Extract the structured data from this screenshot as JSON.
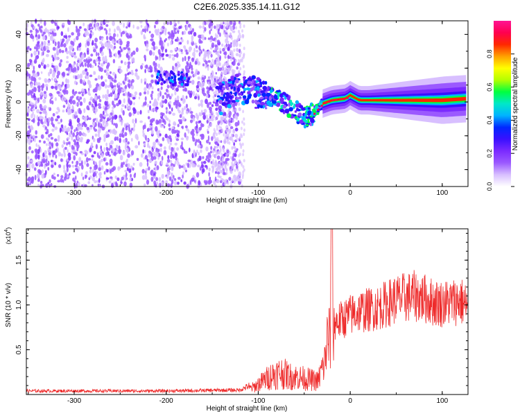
{
  "title": "C2E6.2025.335.14.11.G12",
  "chart_data": [
    {
      "type": "heatmap",
      "name": "spectrogram",
      "xlabel": "Height of straight line (km)",
      "ylabel": "Frequency (Hz)",
      "xlim": [
        -352,
        128
      ],
      "ylim": [
        -50,
        48
      ],
      "xticks": [
        -300,
        -200,
        -100,
        0,
        100
      ],
      "yticks": [
        40,
        20,
        0,
        -20,
        -40
      ],
      "colorbar": {
        "label": "Normalized spectral amplitude",
        "range": [
          0,
          1
        ],
        "ticks": [
          0.0,
          0.2,
          0.4,
          0.6,
          0.8
        ],
        "colors": [
          "#ffffff",
          "#d8bfff",
          "#9b59ff",
          "#7b2bff",
          "#3a10ff",
          "#0028ff",
          "#00b4ff",
          "#00e8c8",
          "#00ff40",
          "#b4ff00",
          "#ffff00",
          "#ffa000",
          "#ff2800",
          "#ff0050",
          "#ff1493"
        ]
      },
      "features": [
        {
          "desc": "broadband noise",
          "x_range": [
            -352,
            -120
          ],
          "f_range": [
            -50,
            48
          ],
          "level": 0.12
        },
        {
          "desc": "noise cluster",
          "x_range": [
            -212,
            -175
          ],
          "f_center": 14,
          "level": 0.38
        },
        {
          "desc": "signal track",
          "points": [
            [
              -140,
              4
            ],
            [
              -120,
              8
            ],
            [
              -100,
              5
            ],
            [
              -80,
              3
            ],
            [
              -60,
              -5
            ],
            [
              -50,
              -9
            ],
            [
              -40,
              -7
            ],
            [
              -30,
              -1
            ],
            [
              -20,
              1
            ],
            [
              -5,
              2
            ],
            [
              0,
              4
            ],
            [
              10,
              1
            ],
            [
              50,
              1
            ],
            [
              100,
              1
            ],
            [
              128,
              2
            ]
          ],
          "level": 0.85
        }
      ]
    },
    {
      "type": "line",
      "name": "snr",
      "xlabel": "Height of straight line (km)",
      "ylabel": "SNR (10 * v/v)",
      "y_scale_label": "(x10",
      "y_scale_exp": "4",
      "xlim": [
        -352,
        128
      ],
      "ylim": [
        0,
        1.85
      ],
      "xticks": [
        -300,
        -200,
        -100,
        0,
        100
      ],
      "yticks": [
        0.5,
        1.0,
        1.5
      ],
      "ytick_labels": [
        "0.5",
        "1.0",
        "1.5"
      ],
      "color": "#ee2a2a",
      "envelope": [
        [
          -352,
          0.04
        ],
        [
          -200,
          0.04
        ],
        [
          -120,
          0.05
        ],
        [
          -105,
          0.12
        ],
        [
          -95,
          0.22
        ],
        [
          -85,
          0.32
        ],
        [
          -75,
          0.36
        ],
        [
          -65,
          0.3
        ],
        [
          -55,
          0.28
        ],
        [
          -45,
          0.25
        ],
        [
          -35,
          0.22
        ],
        [
          -28,
          0.55
        ],
        [
          -25,
          0.95
        ],
        [
          -22,
          1.0
        ],
        [
          -20,
          1.85
        ],
        [
          -18,
          0.95
        ],
        [
          -10,
          0.98
        ],
        [
          0,
          1.05
        ],
        [
          10,
          1.1
        ],
        [
          20,
          1.12
        ],
        [
          30,
          1.15
        ],
        [
          40,
          1.2
        ],
        [
          50,
          1.26
        ],
        [
          60,
          1.28
        ],
        [
          70,
          1.3
        ],
        [
          80,
          1.27
        ],
        [
          90,
          1.22
        ],
        [
          100,
          1.2
        ],
        [
          110,
          1.22
        ],
        [
          120,
          1.24
        ],
        [
          128,
          1.15
        ]
      ]
    }
  ]
}
